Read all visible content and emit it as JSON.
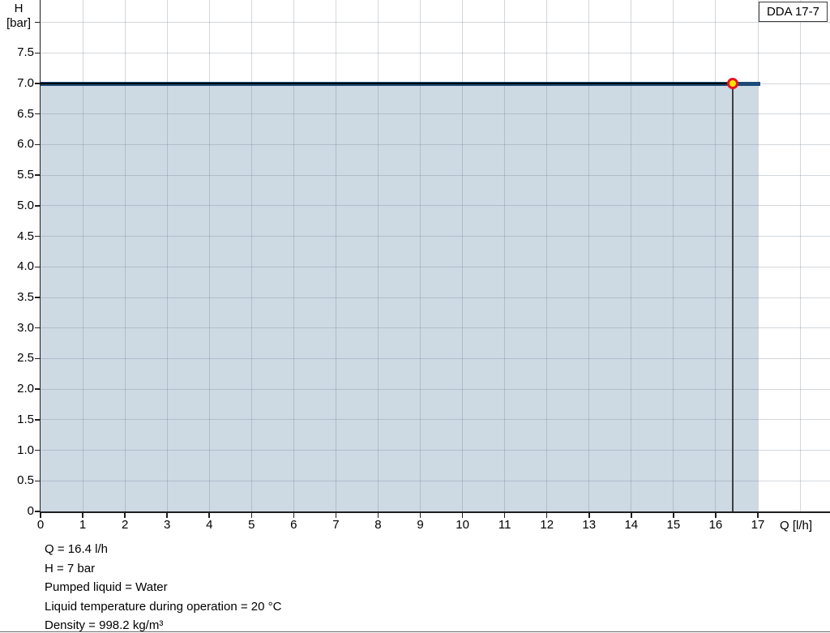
{
  "pump_model": "DDA 17-7",
  "axes": {
    "y_title_line1": "H",
    "y_title_line2": "[bar]",
    "x_title": "Q [l/h]"
  },
  "footer": {
    "lines": [
      "Q = 16.4 l/h",
      "H = 7 bar",
      "Pumped liquid = Water",
      "Liquid temperature during operation = 20 °C",
      "Density = 998.2 kg/m³"
    ]
  },
  "chart_data": {
    "type": "area",
    "title": "DDA 17-7",
    "xlabel": "Q [l/h]",
    "ylabel": "H [bar]",
    "xlim": [
      0,
      18.7
    ],
    "ylim": [
      0,
      8.35
    ],
    "grid": true,
    "x_grid_step": 1,
    "y_grid_step": 0.5,
    "x_ticks": [
      0,
      1,
      2,
      3,
      4,
      5,
      6,
      7,
      8,
      9,
      10,
      11,
      12,
      13,
      14,
      15,
      16,
      17
    ],
    "y_ticks": [
      0,
      0.5,
      1.0,
      1.5,
      2.0,
      2.5,
      3.0,
      3.5,
      4.0,
      4.5,
      5.0,
      5.5,
      6.0,
      6.5,
      7.0,
      7.5
    ],
    "y_tick_marks_max": 8.0,
    "series": [
      {
        "name": "DDA 17-7 pump curve",
        "x": [
          0,
          17.05
        ],
        "y": [
          7,
          7
        ]
      }
    ],
    "fill_end_q": 17,
    "curve_end_q": 17.05,
    "operating_point": {
      "q": 16.4,
      "h": 7
    },
    "colors": {
      "curve": "#1c4a77",
      "curve_core": "#000000",
      "fill": "#cdd9e3",
      "grid": "#d6dade",
      "axis": "#1f1f1f",
      "ref_line": "#3f3f3f",
      "point_fill": "#ffe600",
      "point_ring": "#ea1220"
    }
  }
}
